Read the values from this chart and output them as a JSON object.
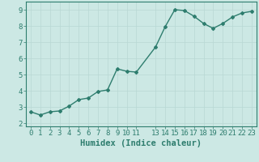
{
  "x": [
    0,
    1,
    2,
    3,
    4,
    5,
    6,
    7,
    8,
    9,
    10,
    11,
    13,
    14,
    15,
    16,
    17,
    18,
    19,
    20,
    21,
    22,
    23
  ],
  "y": [
    2.7,
    2.5,
    2.7,
    2.75,
    3.05,
    3.45,
    3.55,
    3.95,
    4.05,
    5.35,
    5.2,
    5.15,
    6.7,
    7.95,
    9.0,
    8.95,
    8.6,
    8.15,
    7.85,
    8.15,
    8.55,
    8.8,
    8.9
  ],
  "line_color": "#2e7d6e",
  "marker": "D",
  "marker_size": 2.0,
  "line_width": 1.0,
  "bg_color": "#cce8e4",
  "grid_color": "#b8d8d4",
  "axis_color": "#2e7d6e",
  "xlabel": "Humidex (Indice chaleur)",
  "xlabel_fontsize": 7.5,
  "tick_fontsize": 6.5,
  "ylim": [
    1.8,
    9.5
  ],
  "yticks": [
    2,
    3,
    4,
    5,
    6,
    7,
    8,
    9
  ],
  "xticks": [
    0,
    1,
    2,
    3,
    4,
    5,
    6,
    7,
    8,
    9,
    10,
    11,
    13,
    14,
    15,
    16,
    17,
    18,
    19,
    20,
    21,
    22,
    23
  ],
  "xlim": [
    -0.5,
    23.5
  ]
}
